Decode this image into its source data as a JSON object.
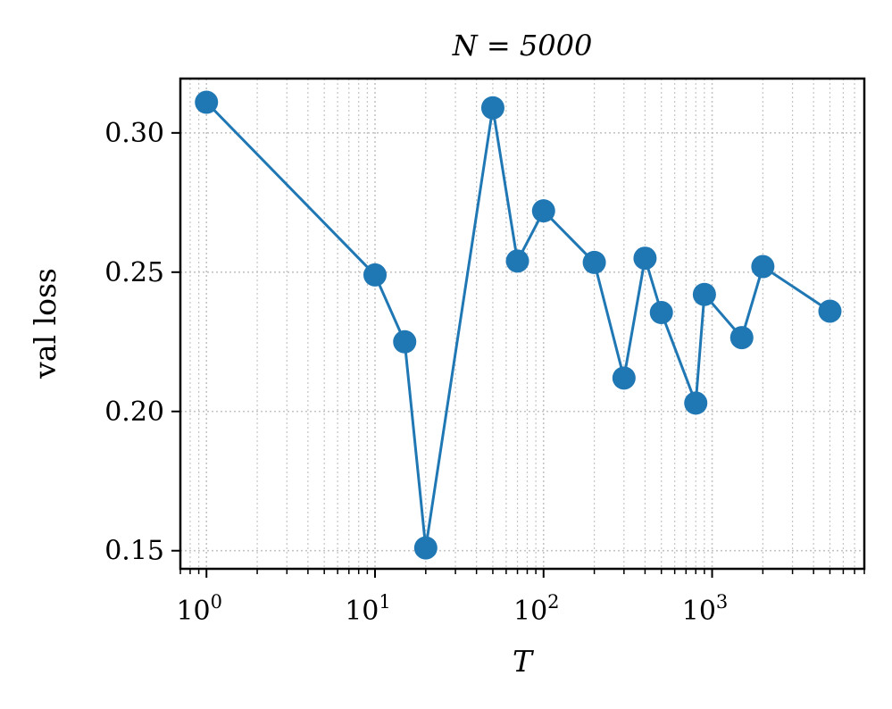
{
  "chart_data": {
    "type": "line",
    "title": "N = 5000",
    "xlabel": "T",
    "ylabel": "val loss",
    "x_scale": "log",
    "xlim": [
      0.7,
      8000
    ],
    "ylim": [
      0.1435,
      0.3195
    ],
    "grid": "major-and-minor, dotted",
    "x_ticks": [
      1,
      10,
      100,
      1000
    ],
    "x_tick_labels": [
      {
        "base": "10",
        "exp": "0"
      },
      {
        "base": "10",
        "exp": "1"
      },
      {
        "base": "10",
        "exp": "2"
      },
      {
        "base": "10",
        "exp": "3"
      }
    ],
    "y_ticks": [
      0.15,
      0.2,
      0.25,
      0.3
    ],
    "y_tick_labels": [
      "0.15",
      "0.20",
      "0.25",
      "0.30"
    ],
    "series": [
      {
        "color": "#1f77b4",
        "marker": "circle",
        "x": [
          1,
          10,
          15,
          20,
          50,
          70,
          100,
          200,
          300,
          400,
          500,
          800,
          900,
          1500,
          2000,
          5000
        ],
        "y": [
          0.311,
          0.249,
          0.225,
          0.151,
          0.309,
          0.254,
          0.272,
          0.2535,
          0.212,
          0.255,
          0.2355,
          0.203,
          0.242,
          0.2265,
          0.252,
          0.236
        ]
      }
    ]
  }
}
